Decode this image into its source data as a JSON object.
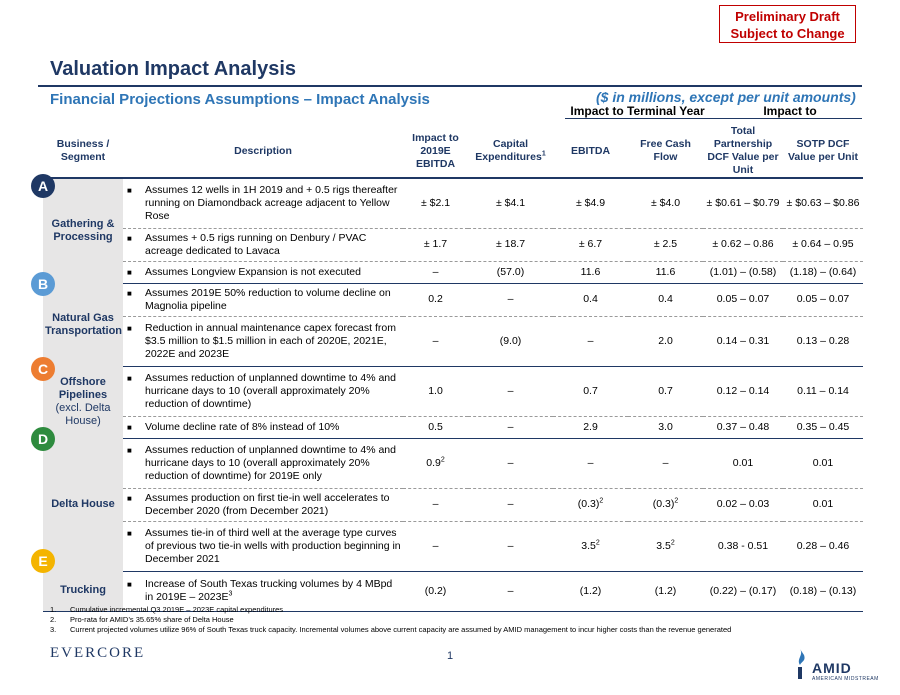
{
  "draft_box": {
    "line1": "Preliminary Draft",
    "line2": "Subject to Change"
  },
  "title": "Valuation Impact Analysis",
  "subtitle": "Financial Projections Assumptions – Impact Analysis",
  "units_note": "($ in millions, except per unit amounts)",
  "impact_terminal_label": "Impact to Terminal Year",
  "impact_to_label": "Impact to",
  "headers": {
    "segment": "Business / Segment",
    "description": "Description",
    "impact_ebitda": "Impact to 2019E EBITDA",
    "capex": "Capital Expenditures",
    "capex_sup": "1",
    "ebitda": "EBITDA",
    "fcf": "Free Cash Flow",
    "total_partnership": "Total Partnership DCF Value per Unit",
    "sotp": "SOTP DCF Value per Unit"
  },
  "badges": [
    {
      "letter": "A",
      "color": "#1f3864"
    },
    {
      "letter": "B",
      "color": "#5b9bd5"
    },
    {
      "letter": "C",
      "color": "#ed7d31"
    },
    {
      "letter": "D",
      "color": "#2e8b3e"
    },
    {
      "letter": "E",
      "color": "#f4b400"
    }
  ],
  "segments": [
    {
      "name": "Gathering & Processing",
      "rows": [
        {
          "desc": "Assumes 12 wells in 1H 2019 and + 0.5 rigs thereafter running on Diamondback acreage adjacent to Yellow Rose",
          "impact": "± $2.1",
          "capex": "± $4.1",
          "ebitda": "± $4.9",
          "fcf": "± $4.0",
          "tp": "± $0.61 – $0.79",
          "sotp": "± $0.63 – $0.86"
        },
        {
          "desc": "Assumes + 0.5 rigs running on Denbury / PVAC acreage dedicated to Lavaca",
          "impact": "± 1.7",
          "capex": "± 18.7",
          "ebitda": "± 6.7",
          "fcf": "± 2.5",
          "tp": "± 0.62 – 0.86",
          "sotp": "± 0.64 – 0.95"
        },
        {
          "desc": "Assumes Longview Expansion is not executed",
          "impact": "–",
          "capex": "(57.0)",
          "ebitda": "11.6",
          "fcf": "11.6",
          "tp": "(1.01) – (0.58)",
          "sotp": "(1.18) – (0.64)"
        }
      ]
    },
    {
      "name": "Natural Gas Transportation",
      "rows": [
        {
          "desc": "Assumes 2019E 50% reduction to volume decline on Magnolia pipeline",
          "impact": "0.2",
          "capex": "–",
          "ebitda": "0.4",
          "fcf": "0.4",
          "tp": "0.05 – 0.07",
          "sotp": "0.05 – 0.07"
        },
        {
          "desc": "Reduction in annual maintenance capex forecast from $3.5 million to $1.5 million in each of 2020E, 2021E, 2022E and 2023E",
          "impact": "–",
          "capex": "(9.0)",
          "ebitda": "–",
          "fcf": "2.0",
          "tp": "0.14 – 0.31",
          "sotp": "0.13 – 0.28"
        }
      ]
    },
    {
      "name": "Offshore Pipelines",
      "name_sub": "(excl. Delta House)",
      "rows": [
        {
          "desc": "Assumes reduction of unplanned downtime to 4% and hurricane days to 10 (overall approximately 20% reduction of downtime)",
          "impact": "1.0",
          "capex": "–",
          "ebitda": "0.7",
          "fcf": "0.7",
          "tp": "0.12 – 0.14",
          "sotp": "0.11 – 0.14"
        },
        {
          "desc": "Volume decline rate of 8% instead of 10%",
          "impact": "0.5",
          "capex": "–",
          "ebitda": "2.9",
          "fcf": "3.0",
          "tp": "0.37 – 0.48",
          "sotp": "0.35 – 0.45"
        }
      ]
    },
    {
      "name": "Delta House",
      "rows": [
        {
          "desc": "Assumes reduction of unplanned downtime to 4% and hurricane days to 10 (overall approximately 20% reduction of downtime) for 2019E only",
          "impact": "0.9",
          "impact_sup": "2",
          "capex": "–",
          "ebitda": "–",
          "fcf": "–",
          "tp": "0.01",
          "sotp": "0.01"
        },
        {
          "desc": "Assumes production on first tie-in well accelerates to December 2020 (from December 2021)",
          "impact": "–",
          "capex": "–",
          "ebitda": "(0.3)",
          "ebitda_sup": "2",
          "fcf": "(0.3)",
          "fcf_sup": "2",
          "tp": "0.02 – 0.03",
          "sotp": "0.01"
        },
        {
          "desc": "Assumes tie-in of third well at the average type curves of previous two tie-in wells with production beginning in December 2021",
          "impact": "–",
          "capex": "–",
          "ebitda": "3.5",
          "ebitda_sup": "2",
          "fcf": "3.5",
          "fcf_sup": "2",
          "tp": "0.38 - 0.51",
          "sotp": "0.28 – 0.46"
        }
      ]
    },
    {
      "name": "Trucking",
      "rows": [
        {
          "desc": "Increase of South Texas trucking volumes by 4 MBpd in 2019E – 2023E",
          "desc_sup": "3",
          "impact": "(0.2)",
          "capex": "–",
          "ebitda": "(1.2)",
          "fcf": "(1.2)",
          "tp": "(0.22) – (0.17)",
          "sotp": "(0.18) – (0.13)"
        }
      ]
    }
  ],
  "footnotes": [
    {
      "n": "1.",
      "text": "Cumulative incremental Q3 2019E – 2023E capital expenditures"
    },
    {
      "n": "2.",
      "text": "Pro-rata for AMID’s 35.65% share of Delta House"
    },
    {
      "n": "3.",
      "text": "Current projected volumes utilize 96% of South Texas truck capacity. Incremental volumes above current capacity are assumed by AMID management to incur higher costs than the revenue generated"
    }
  ],
  "footer": {
    "left_logo": "EVERCORE",
    "page": "1",
    "right_logo": "AMID",
    "right_logo_sub": "AMERICAN MIDSTREAM"
  }
}
